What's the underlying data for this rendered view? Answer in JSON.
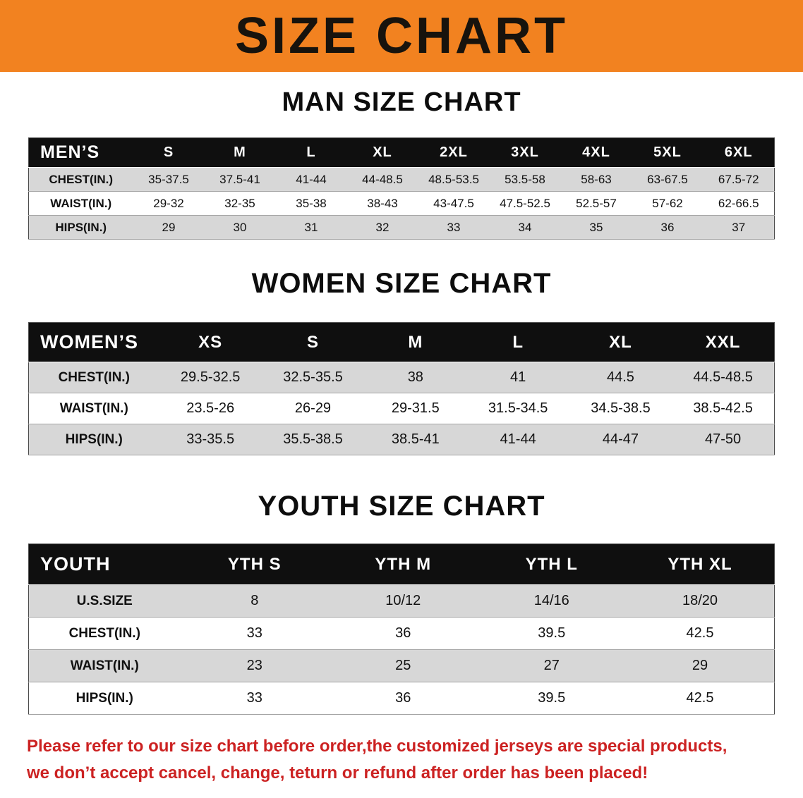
{
  "banner": {
    "title": "SIZE CHART"
  },
  "colors": {
    "banner_bg": "#f28220",
    "table_header_bg": "#0f0f0f",
    "table_header_text": "#ffffff",
    "row_stripe": "#d7d7d7",
    "footer_text": "#cc2222"
  },
  "sections": [
    {
      "id": "man",
      "title": "MAN SIZE CHART",
      "header": [
        "MEN’S",
        "S",
        "M",
        "L",
        "XL",
        "2XL",
        "3XL",
        "4XL",
        "5XL",
        "6XL"
      ],
      "rows": [
        [
          "CHEST(IN.)",
          "35-37.5",
          "37.5-41",
          "41-44",
          "44-48.5",
          "48.5-53.5",
          "53.5-58",
          "58-63",
          "63-67.5",
          "67.5-72"
        ],
        [
          "WAIST(IN.)",
          "29-32",
          "32-35",
          "35-38",
          "38-43",
          "43-47.5",
          "47.5-52.5",
          "52.5-57",
          "57-62",
          "62-66.5"
        ],
        [
          "HIPS(IN.)",
          "29",
          "30",
          "31",
          "32",
          "33",
          "34",
          "35",
          "36",
          "37"
        ]
      ]
    },
    {
      "id": "women",
      "title": "WOMEN SIZE CHART",
      "header": [
        "WOMEN’S",
        "XS",
        "S",
        "M",
        "L",
        "XL",
        "XXL"
      ],
      "rows": [
        [
          "CHEST(IN.)",
          "29.5-32.5",
          "32.5-35.5",
          "38",
          "41",
          "44.5",
          "44.5-48.5"
        ],
        [
          "WAIST(IN.)",
          "23.5-26",
          "26-29",
          "29-31.5",
          "31.5-34.5",
          "34.5-38.5",
          "38.5-42.5"
        ],
        [
          "HIPS(IN.)",
          "33-35.5",
          "35.5-38.5",
          "38.5-41",
          "41-44",
          "44-47",
          "47-50"
        ]
      ]
    },
    {
      "id": "youth",
      "title": "YOUTH SIZE CHART",
      "header": [
        "YOUTH",
        "YTH S",
        "YTH M",
        "YTH L",
        "YTH XL"
      ],
      "rows": [
        [
          "U.S.SIZE",
          "8",
          "10/12",
          "14/16",
          "18/20"
        ],
        [
          "CHEST(IN.)",
          "33",
          "36",
          "39.5",
          "42.5"
        ],
        [
          "WAIST(IN.)",
          "23",
          "25",
          "27",
          "29"
        ],
        [
          "HIPS(IN.)",
          "33",
          "36",
          "39.5",
          "42.5"
        ]
      ]
    }
  ],
  "footer": {
    "lines": [
      "Please refer to our size chart before order,the customized jerseys are special products,",
      "we don’t accept cancel, change, teturn or refund after order has been placed!"
    ]
  }
}
